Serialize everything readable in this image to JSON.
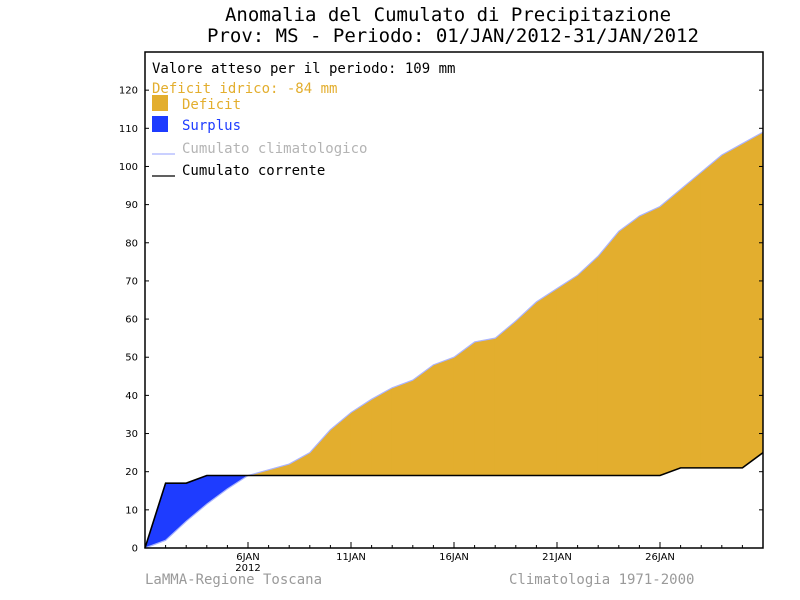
{
  "chart_data": {
    "type": "area",
    "title_line1": "Anomalia del Cumulato di Precipitazione",
    "title_line2": "Prov: MS - Periodo: 01/JAN/2012-31/JAN/2012",
    "expected_text": "Valore atteso per il periodo: 109 mm",
    "deficit_text": "Deficit idrico: -84 mm",
    "legend": [
      {
        "label": "Deficit",
        "color": "#e3ae2e",
        "kind": "fill"
      },
      {
        "label": "Surplus",
        "color": "#1e3cff",
        "kind": "fill"
      },
      {
        "label": "Cumulato climatologico",
        "color": "#aab4ff",
        "kind": "line"
      },
      {
        "label": "Cumulato corrente",
        "color": "#000000",
        "kind": "line"
      }
    ],
    "legend_text_colors": [
      "#e3ae2e",
      "#1e3cff",
      "#b4b4b4",
      "#000000"
    ],
    "ylim": [
      0,
      130
    ],
    "yticks": [
      0,
      10,
      20,
      30,
      40,
      50,
      60,
      70,
      80,
      90,
      100,
      110,
      120
    ],
    "xlim": [
      1,
      31
    ],
    "xticks": [
      {
        "day": 6,
        "label": "6JAN",
        "sublabel": "2012"
      },
      {
        "day": 11,
        "label": "11JAN",
        "sublabel": ""
      },
      {
        "day": 16,
        "label": "16JAN",
        "sublabel": ""
      },
      {
        "day": 21,
        "label": "21JAN",
        "sublabel": ""
      },
      {
        "day": 26,
        "label": "26JAN",
        "sublabel": ""
      }
    ],
    "x": [
      1,
      2,
      3,
      4,
      5,
      6,
      7,
      8,
      9,
      10,
      11,
      12,
      13,
      14,
      15,
      16,
      17,
      18,
      19,
      20,
      21,
      22,
      23,
      24,
      25,
      26,
      27,
      28,
      29,
      30,
      31
    ],
    "series": [
      {
        "name": "Cumulato climatologico",
        "values": [
          0,
          2,
          7,
          11.5,
          15.5,
          19,
          20.5,
          22,
          25,
          31,
          35.5,
          39,
          42,
          44,
          48,
          50,
          54,
          55,
          59.5,
          64.5,
          68,
          71.5,
          76.5,
          83,
          87,
          89.5,
          94,
          98.5,
          103,
          106,
          109
        ]
      },
      {
        "name": "Cumulato corrente",
        "values": [
          0,
          17,
          17,
          19,
          19,
          19,
          19,
          19,
          19,
          19,
          19,
          19,
          19,
          19,
          19,
          19,
          19,
          19,
          19,
          19,
          19,
          19,
          19,
          19,
          19,
          19,
          21,
          21,
          21,
          21,
          25
        ]
      }
    ],
    "colors": {
      "deficit": "#e3ae2e",
      "surplus": "#1e3cff",
      "climatology": "#aab4ff",
      "current": "#000000",
      "footer": "#9a9a9a"
    }
  },
  "footer": {
    "left": "LaMMA-Regione Toscana",
    "right": "Climatologia 1971-2000"
  }
}
